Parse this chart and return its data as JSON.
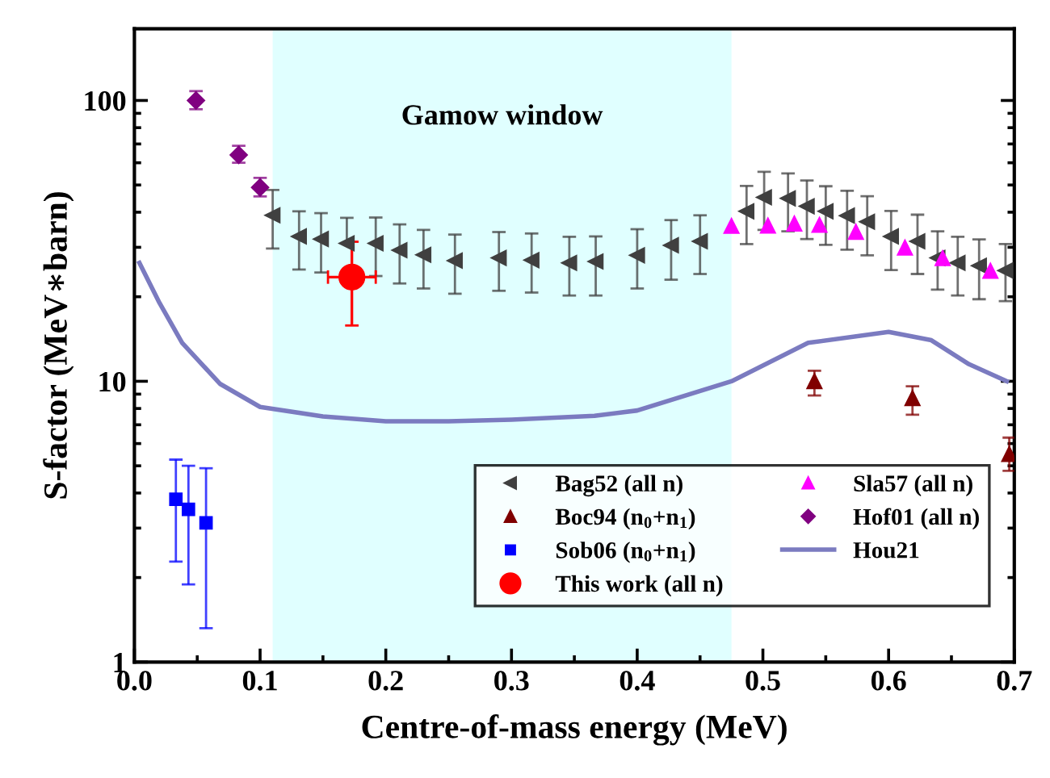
{
  "chart_data": {
    "type": "scatter",
    "xlabel": "Centre-of-mass energy (MeV)",
    "ylabel": "S-factor (MeV∗barn)",
    "xlim": [
      0,
      0.7
    ],
    "xticks": [
      {
        "value": 0,
        "label": "0.0"
      },
      0.1,
      0.2,
      0.3,
      0.4,
      0.5,
      0.6,
      0.7
    ],
    "ylim": [
      1,
      180
    ],
    "yticks": [
      1,
      10,
      100
    ],
    "log": "y",
    "grid": false,
    "legend": "bottom right",
    "bands": [
      {
        "axis": "x",
        "from": 0.11,
        "to": 0.475,
        "label": "Gamow window",
        "color": "#e0ffff"
      }
    ],
    "series": [
      {
        "name": "Bag52 (all n)",
        "color": "#404040",
        "marker": "triangle-left",
        "x": [
          0.11,
          0.131,
          0.1485,
          0.169,
          0.192,
          0.211,
          0.23,
          0.255,
          0.29,
          0.316,
          0.346,
          0.367,
          0.4,
          0.427,
          0.45,
          0.487,
          0.501,
          0.52,
          0.535,
          0.55,
          0.567,
          0.583,
          0.602,
          0.623,
          0.639,
          0.655,
          0.672,
          0.693
        ],
        "values": [
          39.0,
          32.8,
          32.1,
          31,
          31,
          29.3,
          28.2,
          26.9,
          27.5,
          27,
          26.4,
          26.7,
          28.1,
          30.5,
          31.5,
          40.3,
          45.2,
          44.8,
          42,
          40.3,
          38.9,
          37,
          32.8,
          31.5,
          27.5,
          26.4,
          25.8,
          24.8
        ],
        "errors": [
          [
            29.7,
            48
          ],
          [
            25,
            40.3
          ],
          [
            24.4,
            39.7
          ],
          [
            31,
            38.2
          ],
          [
            23.7,
            38.3
          ],
          [
            22.3,
            36.2
          ],
          [
            21.4,
            34.6
          ],
          [
            20.5,
            33.3
          ],
          [
            21,
            34
          ],
          [
            20.7,
            33.6
          ],
          [
            20.2,
            32.7
          ],
          [
            20.2,
            32.8
          ],
          [
            21.4,
            34.8
          ],
          [
            23,
            37.5
          ],
          [
            24.1,
            39
          ],
          [
            30.8,
            49.6
          ],
          [
            34.6,
            55.7
          ],
          [
            34.2,
            55
          ],
          [
            32.1,
            51.9
          ],
          [
            30.6,
            49.5
          ],
          [
            29.4,
            47.7
          ],
          [
            28.1,
            45.6
          ],
          [
            24.9,
            40.4
          ],
          [
            24.1,
            39.2
          ],
          [
            21.2,
            34.2
          ],
          [
            20.2,
            32.7
          ],
          [
            19.6,
            32
          ],
          [
            19.3,
            30.8
          ]
        ]
      },
      {
        "name": "Boc94 (n$_{0}$+n$_{1}$)",
        "color": "#800000",
        "marker": "triangle",
        "x": [
          0.541,
          0.619,
          0.696
        ],
        "values": [
          10.0,
          8.7,
          5.5
        ],
        "errors": [
          [
            8.9,
            10.9
          ],
          [
            7.6,
            9.6
          ],
          [
            4.8,
            6.3
          ]
        ]
      },
      {
        "name": "Sob06 (n$_{0}$+n$_{1}$)",
        "color": "#0000ff",
        "marker": "square",
        "x": [
          0.033,
          0.043,
          0.057
        ],
        "values": [
          3.8,
          3.5,
          3.13
        ],
        "errors": [
          [
            2.28,
            5.26
          ],
          [
            1.89,
            5.0
          ],
          [
            1.32,
            4.9
          ]
        ]
      },
      {
        "name": "This work (all n)",
        "color": "#ff0000",
        "marker": "circle",
        "x": [
          0.173
        ],
        "values": [
          23.5
        ],
        "errors": [
          [
            15.8,
            31.4
          ]
        ],
        "xerrors": [
          [
            0.154,
            0.192
          ]
        ]
      },
      {
        "name": "Sla57 (all n)",
        "color": "#ff00ff",
        "marker": "triangle",
        "x": [
          0.475,
          0.504,
          0.525,
          0.545,
          0.574,
          0.613,
          0.643,
          0.681
        ],
        "values": [
          35.7,
          35.8,
          36.4,
          36,
          34,
          29.9,
          27.4,
          24.7
        ]
      },
      {
        "name": "Hof01 (all n)",
        "color": "#800080",
        "marker": "diamond",
        "x": [
          0.049,
          0.083,
          0.1
        ],
        "values": [
          100,
          64,
          49
        ],
        "errors": [
          [
            93,
            108
          ],
          [
            60,
            69
          ],
          [
            45.5,
            53
          ]
        ]
      },
      {
        "name": "Hou21",
        "type": "line",
        "color": "#7b7bc0",
        "marker": "none",
        "x": [
          0.004,
          0.02,
          0.038,
          0.068,
          0.1,
          0.15,
          0.2,
          0.25,
          0.3,
          0.366,
          0.4,
          0.475,
          0.536,
          0.6,
          0.634,
          0.664,
          0.694
        ],
        "values": [
          26.4,
          19.0,
          13.7,
          9.8,
          8.1,
          7.5,
          7.2,
          7.2,
          7.3,
          7.53,
          7.87,
          10.0,
          13.7,
          15.0,
          14.0,
          11.5,
          10.0
        ]
      }
    ]
  }
}
